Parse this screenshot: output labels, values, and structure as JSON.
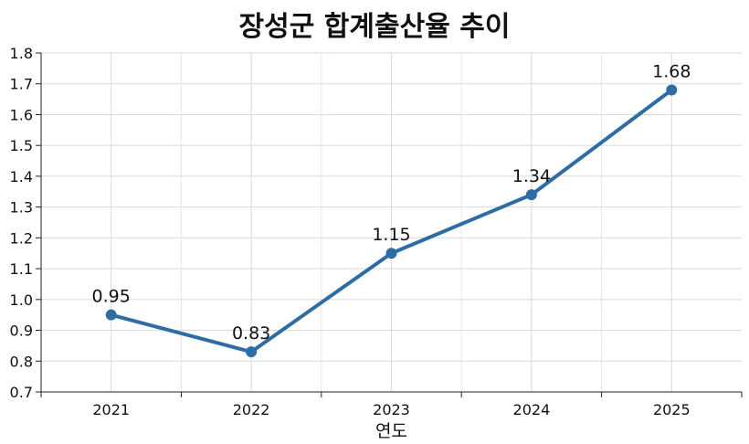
{
  "chart_data": {
    "type": "line",
    "title": "장성군 합계출산율 추이",
    "xlabel": "연도",
    "ylabel": "",
    "categories": [
      "2021",
      "2022",
      "2023",
      "2024",
      "2025"
    ],
    "series": [
      {
        "values": [
          0.95,
          0.83,
          1.15,
          1.34,
          1.68
        ],
        "color": "#2e6da4"
      }
    ],
    "data_labels": [
      "0.95",
      "0.83",
      "1.15",
      "1.34",
      "1.68"
    ],
    "ylim": [
      0.7,
      1.8
    ],
    "yticks": [
      "0.7",
      "0.8",
      "0.9",
      "1.0",
      "1.1",
      "1.2",
      "1.3",
      "1.4",
      "1.5",
      "1.6",
      "1.7",
      "1.8"
    ],
    "grid": true,
    "legend": "none"
  }
}
